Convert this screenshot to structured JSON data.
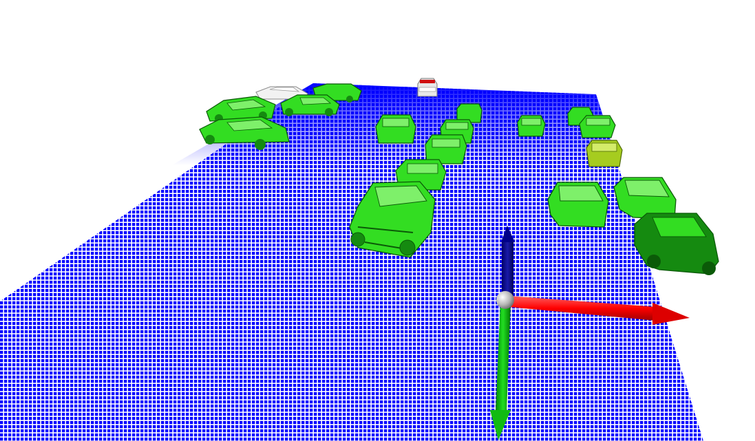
{
  "scene": {
    "background_color": "#ffffff",
    "ground": {
      "description_hidden": true,
      "dot_color": "#0000ff",
      "gap_color": "#ffffff"
    },
    "vehicles": {
      "highlight_color": "#33dd22",
      "dark_color": "#158a10",
      "edge_color": "#0b5a08",
      "yellow_green_color": "#a6cc1f",
      "white_car_color": "#f2f2f2",
      "red_car_color": "#d01010"
    },
    "axes_gizmo": {
      "x_axis_color": "#ff0000",
      "y_axis_color": "#00b000",
      "z_axis_color": "#00008b",
      "origin_color": "#b8b8b8"
    }
  }
}
